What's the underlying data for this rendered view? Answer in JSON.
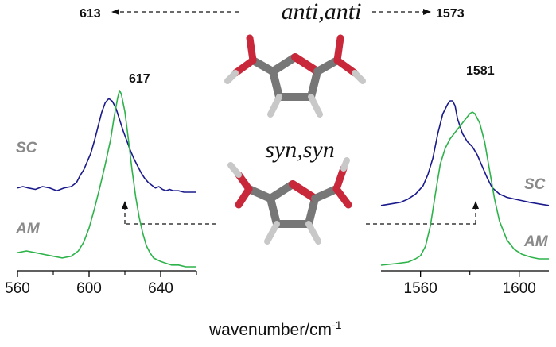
{
  "chart_data": {
    "type": "line",
    "xlabel": "wavenumber/cm",
    "xlabel_superscript": "-1",
    "y_axis": "none",
    "legend": "series labels placed at left and right of curves",
    "colors": {
      "SC": "#1a1a8c",
      "AM": "#2db34a"
    },
    "panels": [
      {
        "name": "left",
        "xlim": [
          560,
          660
        ],
        "ticks": [
          560,
          600,
          640
        ],
        "series": [
          {
            "name": "SC",
            "x": [
              560,
              563,
              566,
              570,
              574,
              578,
              582,
              586,
              590,
              593,
              595,
              597,
              599,
              601,
              603,
              605,
              607,
              609,
              611,
              613,
              615,
              617,
              619,
              621,
              623,
              625,
              627,
              629,
              631,
              633,
              635,
              637,
              639,
              641,
              643,
              645,
              647,
              650,
              653,
              656,
              660
            ],
            "y": [
              0.51,
              0.52,
              0.51,
              0.5,
              0.52,
              0.51,
              0.49,
              0.51,
              0.52,
              0.55,
              0.6,
              0.64,
              0.7,
              0.76,
              0.85,
              0.95,
              1.05,
              1.12,
              1.15,
              1.13,
              1.08,
              1.0,
              0.92,
              0.85,
              0.78,
              0.72,
              0.67,
              0.62,
              0.58,
              0.55,
              0.53,
              0.51,
              0.52,
              0.5,
              0.49,
              0.5,
              0.49,
              0.49,
              0.48,
              0.48,
              0.48
            ]
          },
          {
            "name": "AM",
            "x": [
              560,
              565,
              570,
              575,
              580,
              585,
              590,
              594,
              597,
              600,
              603,
              606,
              609,
              612,
              614,
              616,
              617,
              618,
              620,
              622,
              624,
              626,
              628,
              630,
              632,
              634,
              636,
              638,
              640,
              643,
              646,
              650,
              654,
              660
            ],
            "y": [
              0.08,
              0.09,
              0.08,
              0.07,
              0.06,
              0.05,
              0.06,
              0.09,
              0.14,
              0.22,
              0.33,
              0.45,
              0.58,
              0.72,
              0.85,
              0.96,
              1.0,
              0.98,
              0.88,
              0.72,
              0.55,
              0.4,
              0.28,
              0.19,
              0.12,
              0.08,
              0.05,
              0.04,
              0.03,
              0.02,
              0.01,
              0.01,
              0.0,
              0.0
            ]
          }
        ]
      },
      {
        "name": "right",
        "xlim": [
          1544,
          1612
        ],
        "ticks": [
          1560,
          1600
        ],
        "series": [
          {
            "name": "SC",
            "x": [
              1544,
              1548,
              1552,
              1555,
              1558,
              1561,
              1563,
              1565,
              1567,
              1569,
              1571,
              1572,
              1573,
              1574,
              1575,
              1577,
              1579,
              1581,
              1583,
              1585,
              1587,
              1589,
              1592,
              1595,
              1598,
              1601,
              1604,
              1608,
              1612
            ],
            "y": [
              0.51,
              0.52,
              0.53,
              0.55,
              0.58,
              0.63,
              0.7,
              0.8,
              0.95,
              1.07,
              1.13,
              1.15,
              1.15,
              1.12,
              1.04,
              0.95,
              0.9,
              0.87,
              0.82,
              0.75,
              0.68,
              0.62,
              0.58,
              0.56,
              0.55,
              0.54,
              0.53,
              0.52,
              0.51
            ]
          },
          {
            "name": "AM",
            "x": [
              1544,
              1550,
              1555,
              1558,
              1560,
              1562,
              1564,
              1566,
              1568,
              1570,
              1572,
              1574,
              1576,
              1578,
              1580,
              1581,
              1582,
              1584,
              1586,
              1588,
              1590,
              1592,
              1595,
              1598,
              1601,
              1605,
              1608,
              1612
            ],
            "y": [
              0.0,
              0.01,
              0.02,
              0.04,
              0.06,
              0.12,
              0.25,
              0.45,
              0.64,
              0.74,
              0.8,
              0.84,
              0.88,
              0.92,
              0.96,
              0.97,
              0.96,
              0.9,
              0.78,
              0.6,
              0.42,
              0.28,
              0.16,
              0.1,
              0.07,
              0.05,
              0.04,
              0.04
            ]
          }
        ]
      }
    ],
    "annotations": [
      {
        "text": "613",
        "target": "left SC peak"
      },
      {
        "text": "617",
        "target": "left AM peak"
      },
      {
        "text": "1573",
        "target": "right SC peak"
      },
      {
        "text": "1581",
        "target": "right SC shoulder"
      }
    ],
    "conformers": [
      "anti,anti",
      "syn,syn"
    ]
  }
}
